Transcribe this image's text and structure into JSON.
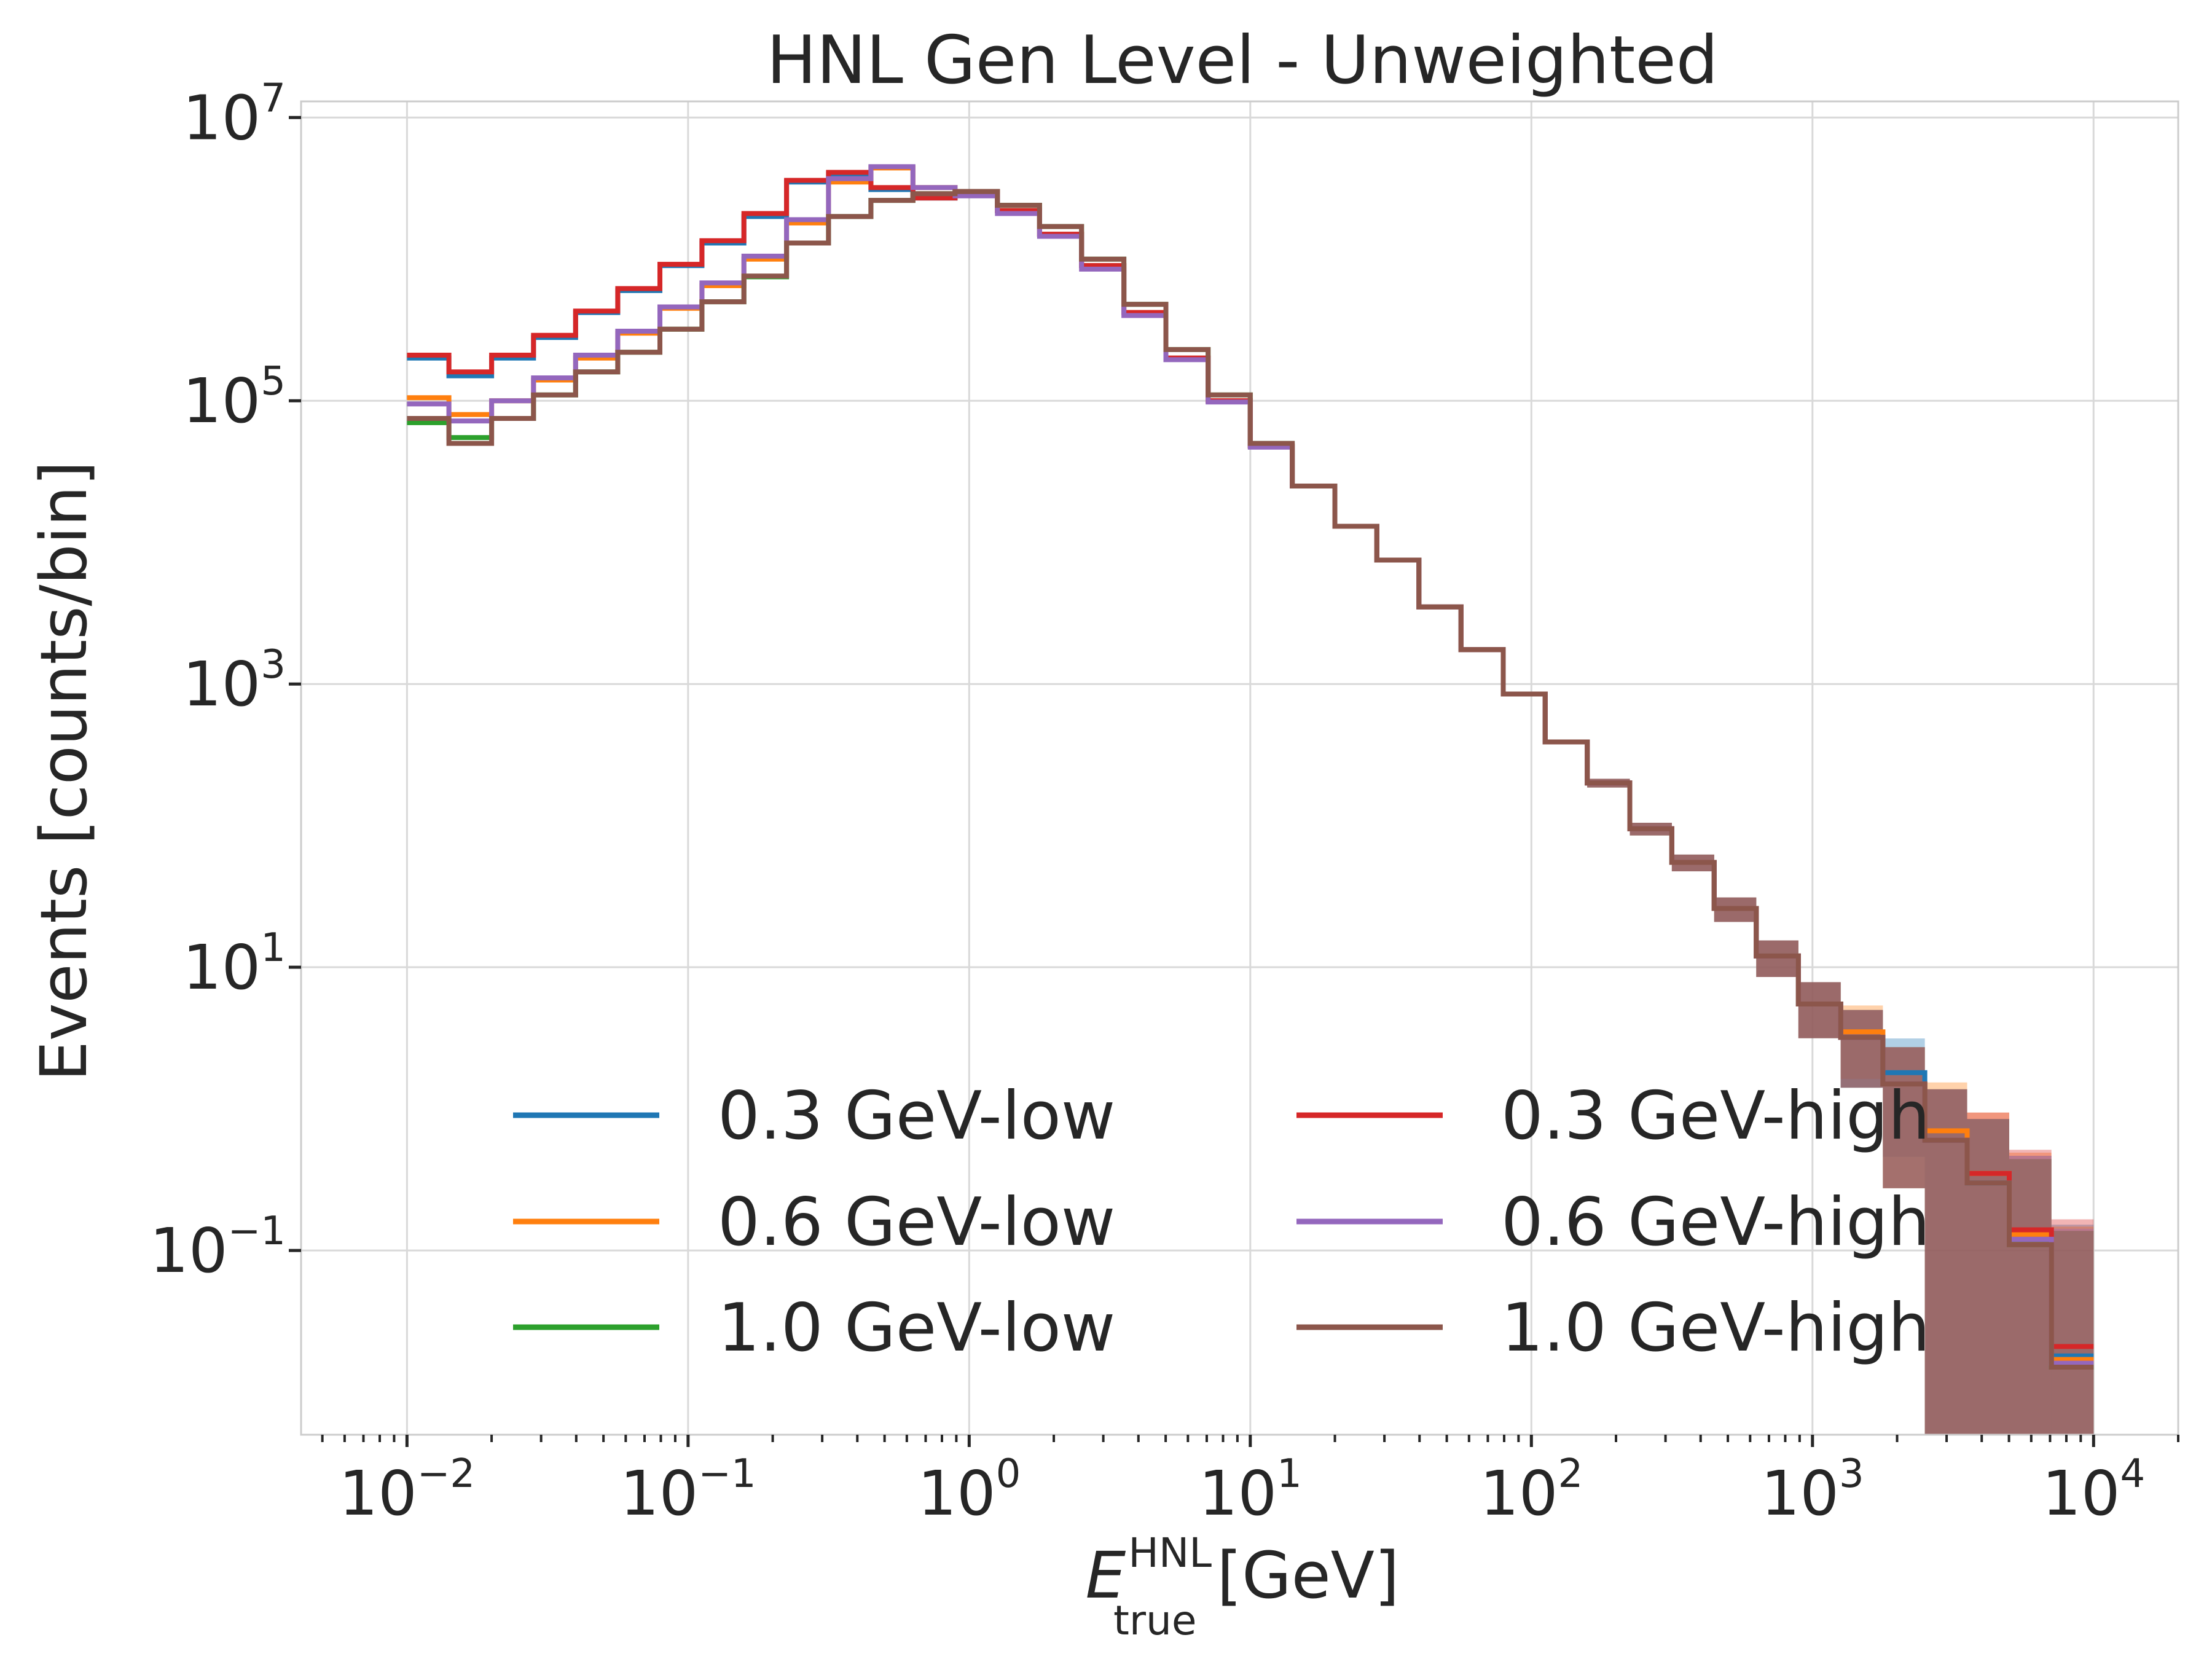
{
  "chart_data": {
    "type": "line",
    "subtype": "step-histogram",
    "title": "HNL Gen Level - Unweighted",
    "xlabel": {
      "base": "E",
      "sup": "HNL",
      "sub": "true",
      "unit": " [GeV]"
    },
    "ylabel": "Events [counts/bin]",
    "xscale": "log",
    "yscale": "log",
    "xlim": [
      0.0042,
      20000
    ],
    "ylim": [
      0.005,
      13000000
    ],
    "grid": true,
    "legend_position": "lower-center",
    "legend_columns": 2,
    "x_tick_labels": [
      {
        "value": 0.01,
        "base": "10",
        "exp": "−2"
      },
      {
        "value": 0.1,
        "base": "10",
        "exp": "−1"
      },
      {
        "value": 1,
        "base": "10",
        "exp": "0"
      },
      {
        "value": 10,
        "base": "10",
        "exp": "1"
      },
      {
        "value": 100,
        "base": "10",
        "exp": "2"
      },
      {
        "value": 1000,
        "base": "10",
        "exp": "3"
      },
      {
        "value": 10000,
        "base": "10",
        "exp": "4"
      }
    ],
    "y_tick_labels": [
      {
        "value": 0.1,
        "base": "10",
        "exp": "−1"
      },
      {
        "value": 10,
        "base": "10",
        "exp": "1"
      },
      {
        "value": 1000,
        "base": "10",
        "exp": "3"
      },
      {
        "value": 100000,
        "base": "10",
        "exp": "5"
      },
      {
        "value": 10000000,
        "base": "10",
        "exp": "7"
      }
    ],
    "bin_edges": [
      0.01,
      0.0141,
      0.02,
      0.0282,
      0.0398,
      0.0562,
      0.0794,
      0.112,
      0.158,
      0.224,
      0.316,
      0.447,
      0.631,
      0.891,
      1.26,
      1.78,
      2.51,
      3.55,
      5.01,
      7.08,
      10.0,
      14.1,
      20.0,
      28.2,
      39.8,
      56.2,
      79.4,
      112,
      158,
      224,
      316,
      447,
      631,
      891,
      1260,
      1780,
      2510,
      3550,
      5010,
      7080,
      10000
    ],
    "series": [
      {
        "name": "0.3 GeV-low",
        "color": "#1f77b4",
        "values": [
          200000,
          150000,
          200000,
          280000,
          420000,
          600000,
          900000,
          1300000,
          2000000,
          3500000,
          4000000,
          3100000,
          2700000,
          3000000,
          2200000,
          1500000,
          900000,
          420000,
          200000,
          100000,
          48000,
          25000,
          13000,
          7500,
          3500,
          1750,
          850,
          390,
          200,
          95,
          55,
          26,
          12,
          5.5,
          3.2,
          1.8,
          0.6,
          0.3,
          0.12,
          0.018
        ]
      },
      {
        "name": "0.6 GeV-low",
        "color": "#ff7f0e",
        "values": [
          105000,
          80000,
          100000,
          140000,
          200000,
          300000,
          450000,
          650000,
          1000000,
          1800000,
          3500000,
          4400000,
          3200000,
          2900000,
          2200000,
          1500000,
          900000,
          420000,
          200000,
          100000,
          48000,
          25000,
          13000,
          7500,
          3500,
          1750,
          850,
          390,
          200,
          95,
          55,
          26,
          12,
          5.5,
          3.5,
          1.5,
          0.7,
          0.35,
          0.13,
          0.017
        ]
      },
      {
        "name": "1.0 GeV-low",
        "color": "#2ca02c",
        "values": [
          70000,
          55000,
          75000,
          110000,
          160000,
          220000,
          320000,
          500000,
          750000,
          1300000,
          2000000,
          2600000,
          2900000,
          3000000,
          2400000,
          1700000,
          1000000,
          480000,
          230000,
          110000,
          50000,
          25000,
          13000,
          7500,
          3500,
          1750,
          850,
          390,
          200,
          95,
          55,
          26,
          12,
          5.5,
          3.2,
          1.5,
          0.6,
          0.3,
          0.11,
          0.015
        ]
      },
      {
        "name": "0.3 GeV-high",
        "color": "#d62728",
        "values": [
          210000,
          160000,
          210000,
          290000,
          430000,
          620000,
          920000,
          1350000,
          2100000,
          3600000,
          4100000,
          3200000,
          2700000,
          3000000,
          2200000,
          1500000,
          900000,
          420000,
          200000,
          100000,
          48000,
          25000,
          13000,
          7500,
          3500,
          1750,
          850,
          390,
          200,
          95,
          55,
          26,
          12,
          5.5,
          3.2,
          1.5,
          0.6,
          0.35,
          0.14,
          0.021
        ]
      },
      {
        "name": "0.6 GeV-high",
        "color": "#9467bd",
        "values": [
          95000,
          72000,
          100000,
          145000,
          210000,
          310000,
          460000,
          680000,
          1050000,
          1900000,
          3700000,
          4500000,
          3200000,
          2800000,
          2100000,
          1450000,
          850000,
          400000,
          195000,
          98000,
          47000,
          25000,
          13000,
          7500,
          3500,
          1750,
          850,
          390,
          200,
          95,
          55,
          26,
          12,
          5.5,
          3.2,
          1.5,
          0.6,
          0.3,
          0.12,
          0.016
        ]
      },
      {
        "name": "1.0 GeV-high",
        "color": "#8c564b",
        "values": [
          75000,
          50000,
          75000,
          110000,
          160000,
          220000,
          320000,
          500000,
          760000,
          1300000,
          2000000,
          2600000,
          2900000,
          3000000,
          2400000,
          1700000,
          1000000,
          480000,
          230000,
          110000,
          50000,
          25000,
          13000,
          7500,
          3500,
          1750,
          850,
          390,
          200,
          95,
          55,
          26,
          12,
          5.5,
          3.2,
          1.5,
          0.6,
          0.3,
          0.11,
          0.015
        ]
      }
    ]
  }
}
